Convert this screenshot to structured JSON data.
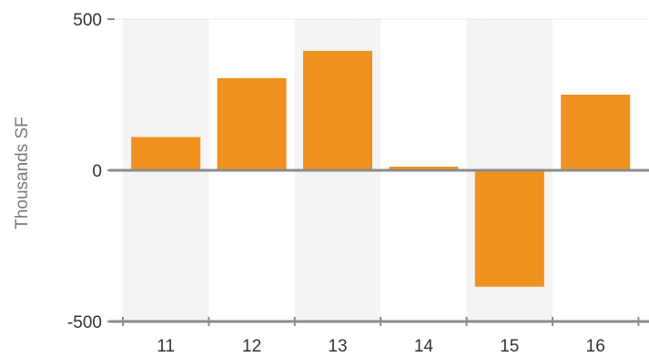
{
  "chart_data": {
    "type": "bar",
    "categories": [
      "11",
      "12",
      "13",
      "14",
      "15",
      "16"
    ],
    "values": [
      110,
      305,
      395,
      12,
      -385,
      250
    ],
    "title": "",
    "xlabel": "",
    "ylabel": "Thousands SF",
    "ylim": [
      -500,
      500
    ],
    "yticks": [
      -500,
      0,
      500
    ],
    "ytick_labels": [
      "-500",
      "0",
      "500"
    ],
    "legend": "none",
    "grid": false
  },
  "colors": {
    "bar": "#f0901e",
    "band": "#f4f4f4",
    "axis": "#8c8c8c",
    "top_gridline": "#c8c8c8"
  }
}
